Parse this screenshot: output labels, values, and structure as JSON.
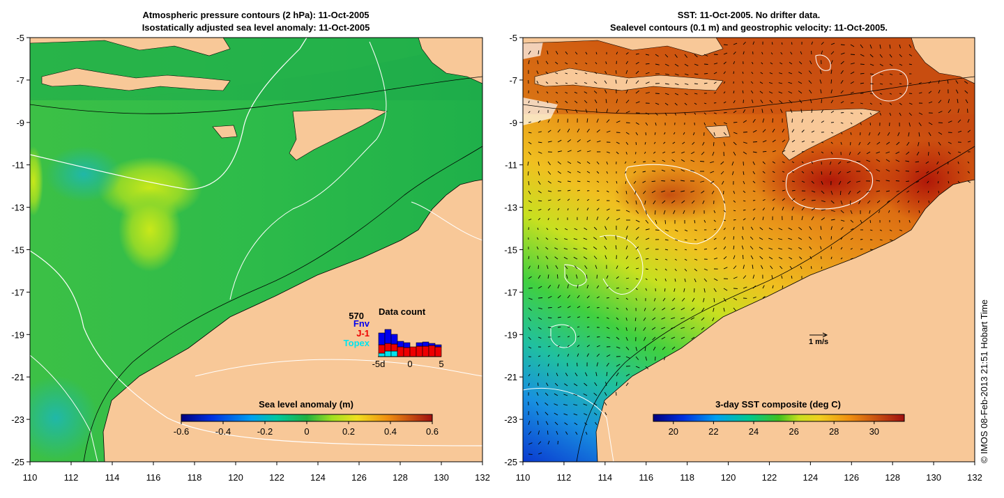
{
  "left_panel": {
    "title_line1": "Atmospheric pressure contours (2 hPa): 11-Oct-2005",
    "title_line2": "Isostatically adjusted sea level anomaly: 11-Oct-2005",
    "y_ticks": [
      "-5",
      "-7",
      "-9",
      "-11",
      "-13",
      "-15",
      "-17",
      "-19",
      "-21",
      "-23",
      "-25"
    ],
    "x_ticks": [
      "110",
      "112",
      "114",
      "116",
      "118",
      "120",
      "122",
      "124",
      "126",
      "128",
      "130",
      "132"
    ],
    "colorbar": {
      "title": "Sea level anomaly (m)",
      "ticks": [
        "-0.6",
        "-0.4",
        "-0.2",
        "0",
        "0.2",
        "0.4",
        "0.6"
      ],
      "range": [
        -0.6,
        0.6
      ]
    },
    "data_count": {
      "title": "Data count",
      "max_label": "570",
      "legend": [
        {
          "label": "Fnv",
          "color": "#0000ee"
        },
        {
          "label": "J-1",
          "color": "#ee0000"
        },
        {
          "label": "Topex",
          "color": "#00e5ee"
        }
      ],
      "x_ticks": [
        "-5d",
        "0",
        "5"
      ],
      "days": [
        -5,
        -4,
        -3,
        -2,
        -1,
        0,
        1,
        2,
        3,
        4
      ],
      "topex": [
        5,
        8,
        8,
        0,
        0,
        0,
        0,
        0,
        0,
        0
      ],
      "jason1": [
        12,
        11,
        10,
        14,
        13,
        14,
        15,
        15,
        16,
        14
      ],
      "envisat": [
        17,
        20,
        14,
        8,
        7,
        0,
        5,
        6,
        3,
        3
      ]
    }
  },
  "right_panel": {
    "title_line1": "SST: 11-Oct-2005. No drifter data.",
    "title_line2": "Sealevel contours (0.1 m) and geostrophic velocity: 11-Oct-2005.",
    "y_ticks": [
      "-5",
      "-7",
      "-9",
      "-11",
      "-13",
      "-15",
      "-17",
      "-19",
      "-21",
      "-23",
      "-25"
    ],
    "x_ticks": [
      "110",
      "112",
      "114",
      "116",
      "118",
      "120",
      "122",
      "124",
      "126",
      "128",
      "130",
      "132"
    ],
    "colorbar": {
      "title": "3-day SST composite (deg C)",
      "ticks": [
        "20",
        "22",
        "24",
        "26",
        "28",
        "30"
      ],
      "range": [
        19,
        31.5
      ]
    },
    "velocity_scale": "1 m/s"
  },
  "credit": "© IMOS 08-Feb-2013 21:51 Hobart Time",
  "colors": {
    "land": "#f8c898",
    "ocean_sla": "#1fb54a",
    "sst_warm": "#d35a10",
    "sst_cool": "#1a60d0"
  }
}
